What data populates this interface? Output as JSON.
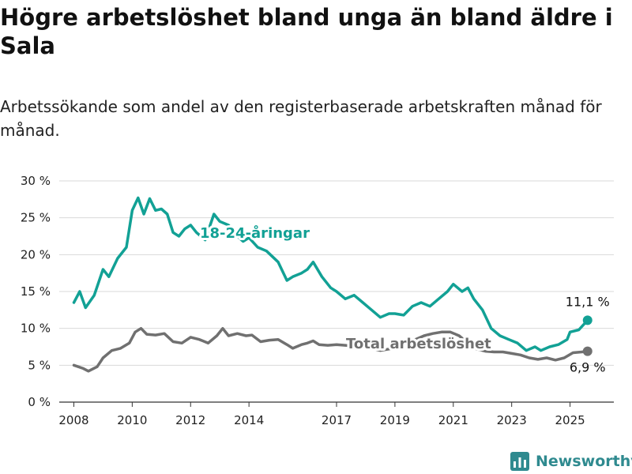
{
  "chart_data": {
    "type": "line",
    "title": "Högre arbetslöshet bland unga än bland äldre i Sala",
    "subtitle": "Arbetssökande som andel av den registerbaserade arbetskraften månad för månad.",
    "ylim": [
      0,
      30
    ],
    "xlim": [
      2007.5,
      2026.5
    ],
    "y_ticks": [
      0,
      5,
      10,
      15,
      20,
      25,
      30
    ],
    "y_tick_labels": [
      "0 %",
      "5 %",
      "10 %",
      "15 %",
      "20 %",
      "25 %",
      "30 %"
    ],
    "x_ticks": [
      2008,
      2010,
      2012,
      2014,
      2017,
      2019,
      2021,
      2023,
      2025
    ],
    "x_tick_labels": [
      "2008",
      "2010",
      "2012",
      "2014",
      "2017",
      "2019",
      "2021",
      "2023",
      "2025"
    ],
    "grid": "horizontal",
    "series": [
      {
        "name": "18-24-åringar",
        "color": "#12a195",
        "end_label": "11,1 %",
        "points": [
          [
            2008.0,
            13.5
          ],
          [
            2008.2,
            15.0
          ],
          [
            2008.4,
            12.8
          ],
          [
            2008.7,
            14.5
          ],
          [
            2009.0,
            18.0
          ],
          [
            2009.2,
            17.0
          ],
          [
            2009.5,
            19.5
          ],
          [
            2009.8,
            21.0
          ],
          [
            2010.0,
            26.0
          ],
          [
            2010.2,
            27.7
          ],
          [
            2010.4,
            25.5
          ],
          [
            2010.6,
            27.6
          ],
          [
            2010.8,
            26.0
          ],
          [
            2011.0,
            26.2
          ],
          [
            2011.2,
            25.5
          ],
          [
            2011.4,
            23.0
          ],
          [
            2011.6,
            22.5
          ],
          [
            2011.8,
            23.5
          ],
          [
            2012.0,
            24.0
          ],
          [
            2012.2,
            23.0
          ],
          [
            2012.5,
            22.0
          ],
          [
            2012.8,
            25.5
          ],
          [
            2013.0,
            24.5
          ],
          [
            2013.3,
            24.0
          ],
          [
            2013.6,
            22.5
          ],
          [
            2013.8,
            21.8
          ],
          [
            2014.0,
            22.3
          ],
          [
            2014.3,
            21.0
          ],
          [
            2014.6,
            20.5
          ],
          [
            2015.0,
            19.0
          ],
          [
            2015.3,
            16.5
          ],
          [
            2015.5,
            17.0
          ],
          [
            2015.8,
            17.5
          ],
          [
            2016.0,
            18.0
          ],
          [
            2016.2,
            19.0
          ],
          [
            2016.5,
            17.0
          ],
          [
            2016.8,
            15.5
          ],
          [
            2017.0,
            15.0
          ],
          [
            2017.3,
            14.0
          ],
          [
            2017.6,
            14.5
          ],
          [
            2017.9,
            13.5
          ],
          [
            2018.2,
            12.5
          ],
          [
            2018.5,
            11.5
          ],
          [
            2018.8,
            12.0
          ],
          [
            2019.0,
            12.0
          ],
          [
            2019.3,
            11.8
          ],
          [
            2019.6,
            13.0
          ],
          [
            2019.9,
            13.5
          ],
          [
            2020.2,
            13.0
          ],
          [
            2020.5,
            14.0
          ],
          [
            2020.8,
            15.0
          ],
          [
            2021.0,
            16.0
          ],
          [
            2021.3,
            15.0
          ],
          [
            2021.5,
            15.5
          ],
          [
            2021.7,
            14.0
          ],
          [
            2022.0,
            12.5
          ],
          [
            2022.3,
            10.0
          ],
          [
            2022.6,
            9.0
          ],
          [
            2022.9,
            8.5
          ],
          [
            2023.2,
            8.0
          ],
          [
            2023.5,
            7.0
          ],
          [
            2023.8,
            7.5
          ],
          [
            2024.0,
            7.0
          ],
          [
            2024.3,
            7.5
          ],
          [
            2024.6,
            7.8
          ],
          [
            2024.9,
            8.5
          ],
          [
            2025.0,
            9.5
          ],
          [
            2025.3,
            9.8
          ],
          [
            2025.6,
            11.1
          ]
        ]
      },
      {
        "name": "Total arbetslöshet",
        "color": "#707070",
        "end_label": "6,9 %",
        "points": [
          [
            2008.0,
            5.0
          ],
          [
            2008.3,
            4.6
          ],
          [
            2008.5,
            4.2
          ],
          [
            2008.8,
            4.8
          ],
          [
            2009.0,
            6.0
          ],
          [
            2009.3,
            7.0
          ],
          [
            2009.6,
            7.3
          ],
          [
            2009.9,
            8.0
          ],
          [
            2010.1,
            9.5
          ],
          [
            2010.3,
            10.0
          ],
          [
            2010.5,
            9.2
          ],
          [
            2010.8,
            9.1
          ],
          [
            2011.1,
            9.3
          ],
          [
            2011.4,
            8.2
          ],
          [
            2011.7,
            8.0
          ],
          [
            2012.0,
            8.8
          ],
          [
            2012.3,
            8.5
          ],
          [
            2012.6,
            8.0
          ],
          [
            2012.9,
            9.0
          ],
          [
            2013.1,
            10.0
          ],
          [
            2013.3,
            9.0
          ],
          [
            2013.6,
            9.3
          ],
          [
            2013.9,
            9.0
          ],
          [
            2014.1,
            9.1
          ],
          [
            2014.4,
            8.2
          ],
          [
            2014.7,
            8.4
          ],
          [
            2015.0,
            8.5
          ],
          [
            2015.3,
            7.8
          ],
          [
            2015.5,
            7.3
          ],
          [
            2015.8,
            7.8
          ],
          [
            2016.0,
            8.0
          ],
          [
            2016.2,
            8.3
          ],
          [
            2016.4,
            7.8
          ],
          [
            2016.7,
            7.7
          ],
          [
            2017.0,
            7.8
          ],
          [
            2017.3,
            7.7
          ],
          [
            2017.6,
            7.6
          ],
          [
            2017.9,
            7.5
          ],
          [
            2018.2,
            7.3
          ],
          [
            2018.5,
            7.0
          ],
          [
            2018.8,
            7.2
          ],
          [
            2019.1,
            7.5
          ],
          [
            2019.4,
            7.8
          ],
          [
            2019.7,
            8.5
          ],
          [
            2020.0,
            9.0
          ],
          [
            2020.3,
            9.3
          ],
          [
            2020.6,
            9.5
          ],
          [
            2020.9,
            9.5
          ],
          [
            2021.2,
            9.0
          ],
          [
            2021.5,
            8.0
          ],
          [
            2021.8,
            7.2
          ],
          [
            2022.1,
            6.9
          ],
          [
            2022.4,
            6.8
          ],
          [
            2022.7,
            6.8
          ],
          [
            2023.0,
            6.6
          ],
          [
            2023.3,
            6.4
          ],
          [
            2023.6,
            6.0
          ],
          [
            2023.9,
            5.8
          ],
          [
            2024.2,
            6.0
          ],
          [
            2024.5,
            5.7
          ],
          [
            2024.8,
            6.0
          ],
          [
            2025.1,
            6.7
          ],
          [
            2025.4,
            6.8
          ],
          [
            2025.6,
            6.9
          ]
        ]
      }
    ]
  },
  "brand": {
    "name": "Newsworthy",
    "icon": "bar-chart-logo-icon"
  }
}
